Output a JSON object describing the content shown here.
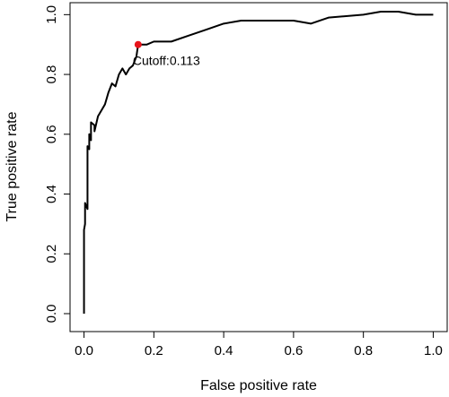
{
  "chart_data": {
    "type": "line",
    "xlabel": "False positive rate",
    "ylabel": "True positive rate",
    "x": [
      0,
      0,
      0.003,
      0.003,
      0.01,
      0.01,
      0.015,
      0.015,
      0.02,
      0.02,
      0.03,
      0.03,
      0.04,
      0.05,
      0.06,
      0.07,
      0.08,
      0.09,
      0.1,
      0.11,
      0.12,
      0.13,
      0.14,
      0.15,
      0.155,
      0.18,
      0.2,
      0.25,
      0.3,
      0.35,
      0.4,
      0.45,
      0.5,
      0.6,
      0.65,
      0.7,
      0.8,
      0.85,
      0.9,
      0.95,
      1.0
    ],
    "series": [
      {
        "color": "#000000",
        "values": [
          0,
          0.28,
          0.3,
          0.37,
          0.35,
          0.56,
          0.55,
          0.6,
          0.58,
          0.64,
          0.63,
          0.61,
          0.66,
          0.68,
          0.7,
          0.74,
          0.77,
          0.76,
          0.8,
          0.82,
          0.8,
          0.82,
          0.83,
          0.86,
          0.9,
          0.9,
          0.91,
          0.91,
          0.93,
          0.95,
          0.97,
          0.98,
          0.98,
          0.98,
          0.97,
          0.99,
          1.0,
          1.01,
          1.01,
          1.0,
          1.0
        ]
      }
    ],
    "highlight": {
      "x": 0.155,
      "y": 0.9,
      "color": "#e8141b",
      "label": "Cutoff:0.113"
    },
    "xlim": [
      -0.04,
      1.04
    ],
    "ylim": [
      -0.06,
      1.04
    ],
    "xticks": [
      {
        "value": 0,
        "label": "0.0"
      },
      0.2,
      0.4,
      0.6,
      0.8,
      {
        "value": 1,
        "label": "1.0"
      }
    ],
    "yticks": [
      {
        "value": 0,
        "label": "0.0"
      },
      0.2,
      0.4,
      0.6,
      0.8,
      {
        "value": 1,
        "label": "1.0"
      }
    ]
  }
}
